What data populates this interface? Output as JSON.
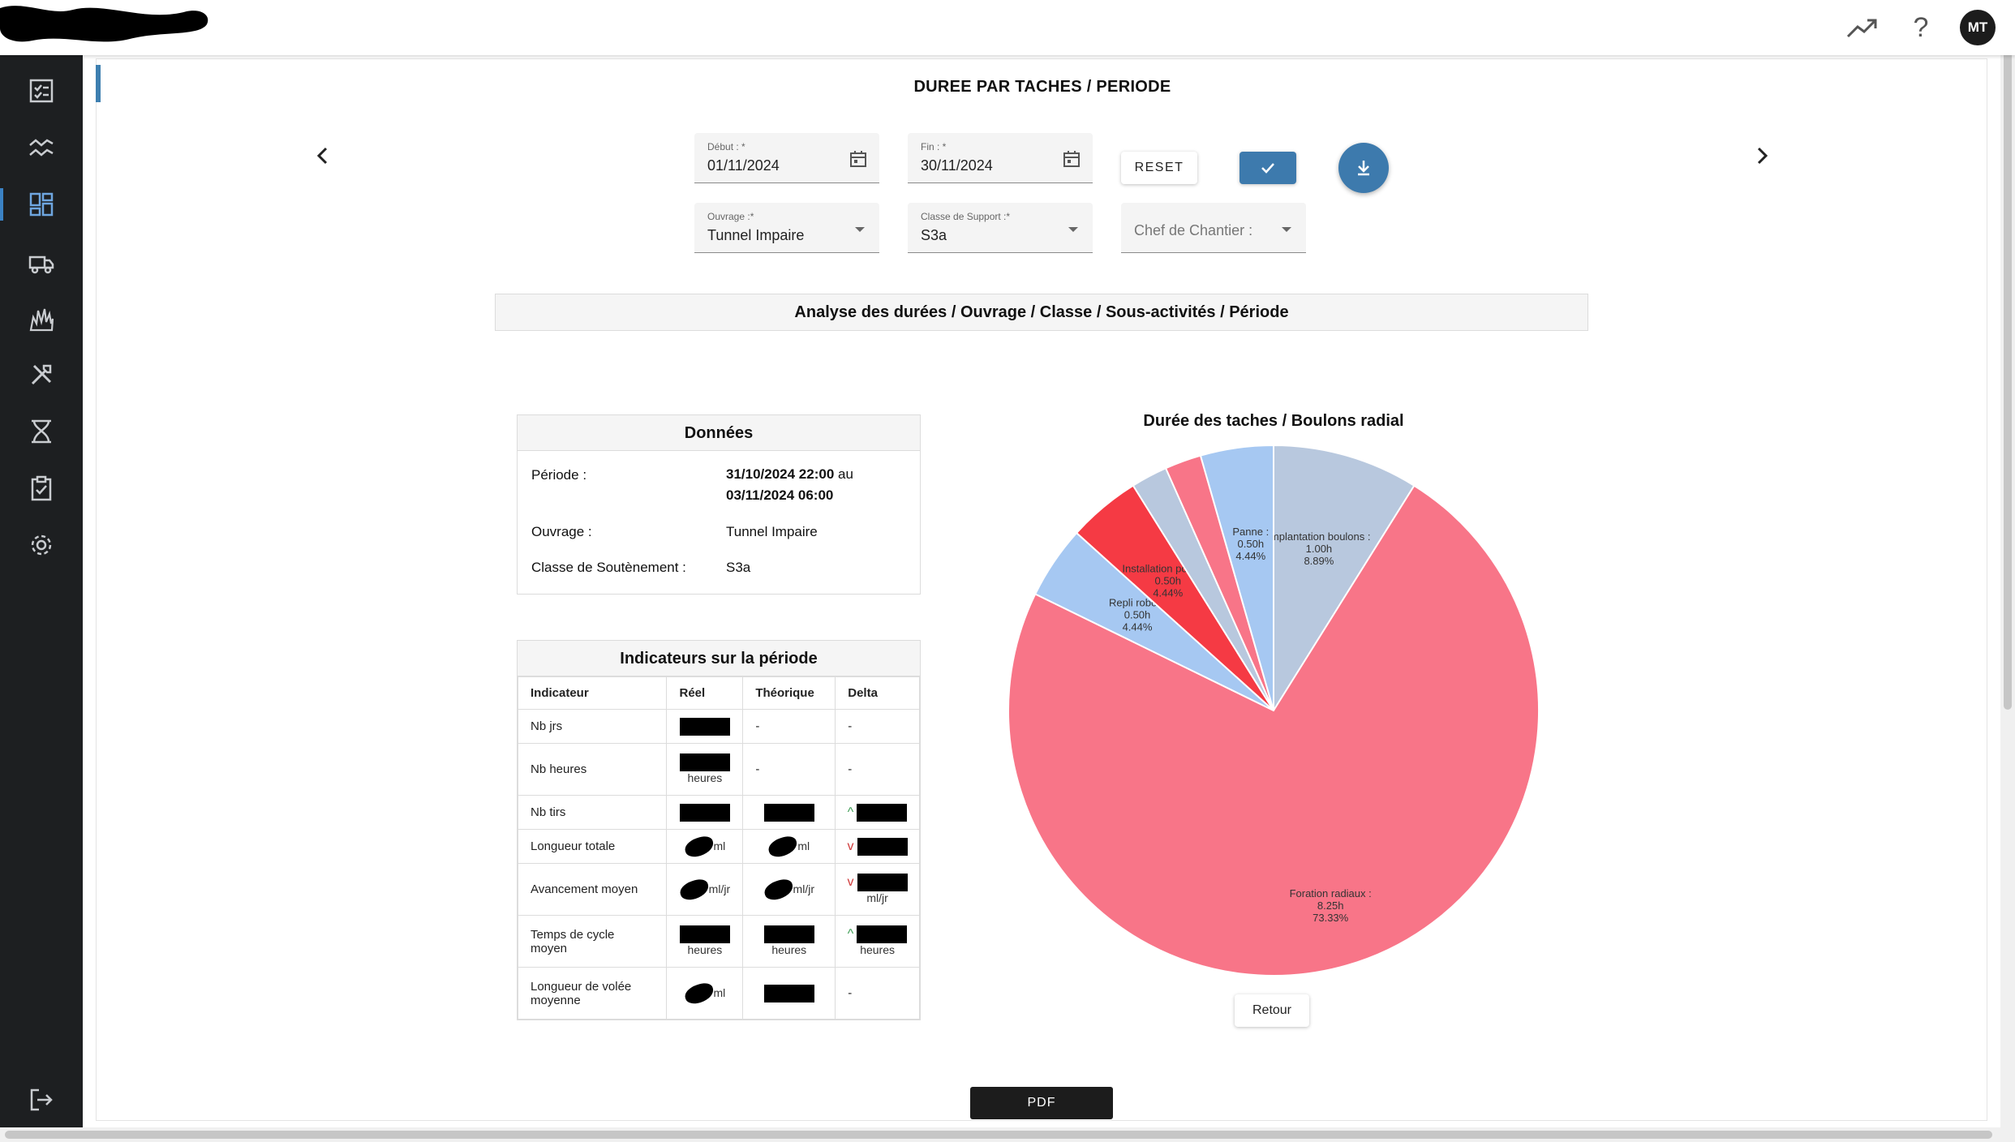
{
  "header": {
    "avatar_initials": "MT",
    "trend_icon": "trending-up-icon",
    "help_icon": "help-icon"
  },
  "sidebar": {
    "items": [
      {
        "icon": "checklist-icon"
      },
      {
        "icon": "chart-line-icon"
      },
      {
        "icon": "dashboard-icon",
        "active": true
      },
      {
        "icon": "truck-icon"
      },
      {
        "icon": "explosion-icon"
      },
      {
        "icon": "tools-icon"
      },
      {
        "icon": "hourglass-icon"
      },
      {
        "icon": "clipboard-check-icon"
      },
      {
        "icon": "gear-icon"
      }
    ],
    "logout_icon": "logout-icon"
  },
  "page": {
    "title": "DUREE PAR TACHES / PERIODE"
  },
  "filters": {
    "debut_label": "Début : *",
    "debut_value": "01/11/2024",
    "fin_label": "Fin : *",
    "fin_value": "30/11/2024",
    "ouvrage_label": "Ouvrage :*",
    "ouvrage_value": "Tunnel Impaire",
    "classe_label": "Classe de Support :*",
    "classe_value": "S3a",
    "chef_placeholder": "Chef de Chantier :",
    "reset_label": "RESET"
  },
  "section": {
    "title": "Analyse des durées / Ouvrage / Classe / Sous-activités / Période"
  },
  "donnees": {
    "title": "Données",
    "periode_label": "Période :",
    "periode_line1": "31/10/2024 22:00",
    "periode_au": "au",
    "periode_line2": "03/11/2024 06:00",
    "ouvrage_label": "Ouvrage :",
    "ouvrage_value": "Tunnel Impaire",
    "classe_label": "Classe de Soutènement :",
    "classe_value": "S3a"
  },
  "indicateurs": {
    "title": "Indicateurs sur la période",
    "headers": [
      "Indicateur",
      "Réel",
      "Théorique",
      "Delta"
    ],
    "rows": [
      {
        "label": "Nb jrs",
        "theo": "-",
        "delta": "-"
      },
      {
        "label": "Nb heures",
        "reel_unit": "heures",
        "theo": "-",
        "delta": "-"
      },
      {
        "label": "Nb tirs"
      },
      {
        "label": "Longueur totale",
        "reel_unit": "ml",
        "theo_unit": "ml"
      },
      {
        "label": "Avancement moyen",
        "reel_unit": "ml/jr",
        "theo_unit": "ml/jr",
        "delta_unit": "ml/jr"
      },
      {
        "label": "Temps de cycle moyen",
        "reel_unit": "heures",
        "theo_unit": "heures",
        "delta_unit": "heures"
      },
      {
        "label": "Longueur de volée moyenne",
        "reel_unit": "ml",
        "delta": "-"
      }
    ]
  },
  "chart_data": {
    "type": "pie",
    "title": "Durée des taches / Boulons radial",
    "slices": [
      {
        "name": "Implantation boulons :",
        "hours": "1.00h",
        "value": 8.89,
        "color": "#b8c8de"
      },
      {
        "name": "Foration radiaux :",
        "hours": "8.25h",
        "value": 73.33,
        "color": "#f87588"
      },
      {
        "name": "Repli robot :",
        "hours": "0.50h",
        "value": 4.44,
        "color": "#a6c8f2"
      },
      {
        "name": "Installation pompe :",
        "hours": "0.50h",
        "value": 4.44,
        "color": "#f53a44"
      },
      {
        "name": "",
        "hours": "",
        "value": 2.22,
        "color": "#b8c8de"
      },
      {
        "name": "",
        "hours": "",
        "value": 2.22,
        "color": "#f87588"
      },
      {
        "name": "Panne :",
        "hours": "0.50h",
        "value": 4.44,
        "color": "#a6c8f2"
      }
    ]
  },
  "buttons": {
    "retour": "Retour",
    "pdf": "PDF"
  }
}
